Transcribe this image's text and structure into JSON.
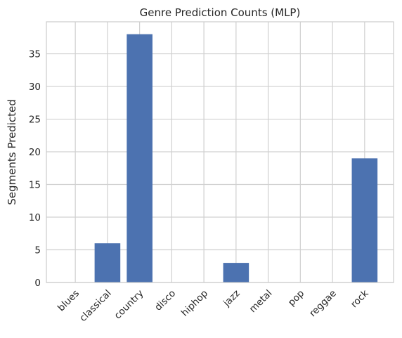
{
  "chart_data": {
    "type": "bar",
    "title": "Genre Prediction Counts (MLP)",
    "xlabel": "",
    "ylabel": "Segments Predicted",
    "categories": [
      "blues",
      "classical",
      "country",
      "disco",
      "hiphop",
      "jazz",
      "metal",
      "pop",
      "reggae",
      "rock"
    ],
    "values": [
      0,
      6,
      38,
      0,
      0,
      3,
      0,
      0,
      0,
      19
    ],
    "ylim": [
      0,
      39.9
    ],
    "yticks": [
      0,
      5,
      10,
      15,
      20,
      25,
      30,
      35
    ],
    "grid": true,
    "legend": "none",
    "colors": {
      "bar": "#4c72b0",
      "grid": "#d0d0d0",
      "frame": "#cccccc"
    }
  }
}
